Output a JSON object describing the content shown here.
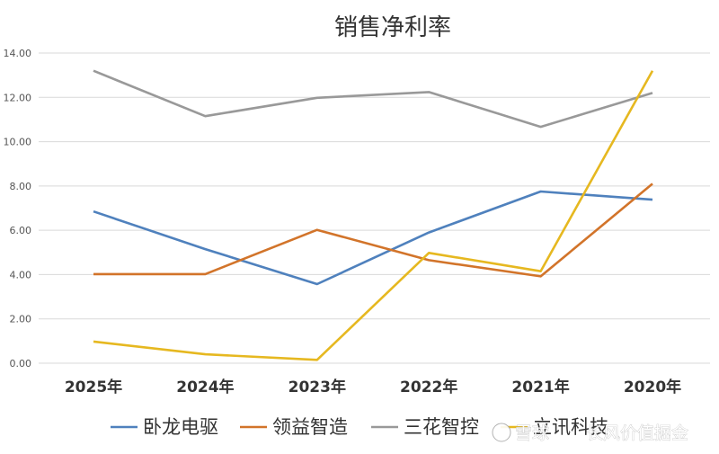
{
  "chart_data": {
    "type": "line",
    "title": "销售净利率",
    "categories": [
      "2025年",
      "2024年",
      "2023年",
      "2022年",
      "2021年",
      "2020年"
    ],
    "ylim": [
      0,
      14
    ],
    "yticks": [
      "0.00",
      "2.00",
      "4.00",
      "6.00",
      "8.00",
      "10.00",
      "12.00",
      "14.00"
    ],
    "grid": true,
    "legend": "bottom",
    "series": [
      {
        "name": "卧龙电驱",
        "color": "#4f81bd",
        "values": [
          6.85,
          5.15,
          3.57,
          5.9,
          7.75,
          7.38
        ]
      },
      {
        "name": "领益智造",
        "color": "#d2742a",
        "values": [
          4.02,
          4.02,
          6.02,
          4.65,
          3.92,
          8.1
        ]
      },
      {
        "name": "三花智控",
        "color": "#999999",
        "values": [
          13.2,
          11.15,
          11.98,
          12.24,
          10.67,
          12.2
        ]
      },
      {
        "name": "立讯科技",
        "color": "#e6b820",
        "values": [
          0.98,
          0.4,
          0.15,
          4.98,
          4.15,
          13.2
        ]
      }
    ]
  },
  "watermark": {
    "brand": "雪球",
    "author": "长风价值掘金"
  }
}
